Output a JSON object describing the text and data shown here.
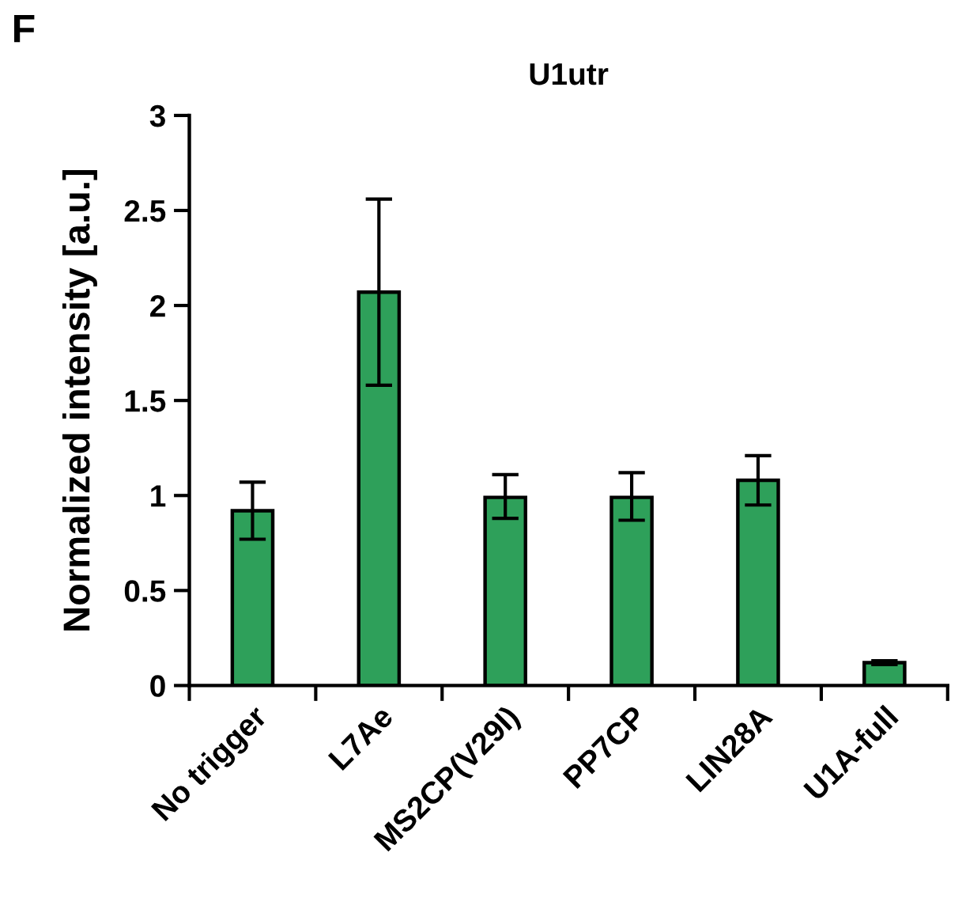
{
  "chart_data": {
    "type": "bar",
    "title": "U1utr",
    "ylabel": "Normalized intensity [a.u.]",
    "annotations": [
      "F"
    ],
    "categories": [
      "No trigger",
      "L7Ae",
      "MS2CP(V29I)",
      "PP7CP",
      "LIN28A",
      "U1A-full"
    ],
    "values": [
      0.92,
      2.07,
      0.99,
      0.99,
      1.08,
      0.12
    ],
    "errors": [
      [
        0.77,
        1.07
      ],
      [
        1.58,
        2.56
      ],
      [
        0.88,
        1.11
      ],
      [
        0.87,
        1.12
      ],
      [
        0.95,
        1.21
      ],
      [
        0.11,
        0.13
      ]
    ],
    "color": "#2ea05a",
    "ylim": [
      0,
      3
    ],
    "yticks": [
      0,
      {
        "value": 0.5,
        "label": "0.5"
      },
      1,
      {
        "value": 1.5,
        "label": "1.5"
      },
      2,
      {
        "value": 2.5,
        "label": "2.5"
      },
      3
    ],
    "grid": false,
    "legend": false
  }
}
